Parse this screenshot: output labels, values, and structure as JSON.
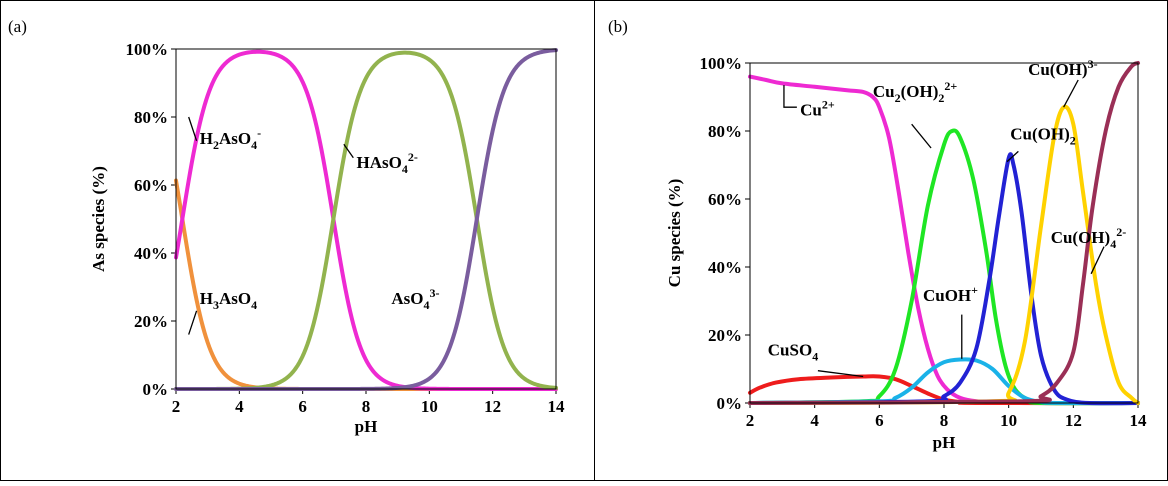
{
  "chart_data": [
    {
      "type": "line",
      "panel_label": "(a)",
      "xlabel": "pH",
      "ylabel": "As species  (%)",
      "xlim": [
        2,
        14
      ],
      "ylim": [
        0,
        100
      ],
      "x_ticks": [
        "2",
        "4",
        "6",
        "8",
        "10",
        "12",
        "14"
      ],
      "y_ticks": [
        "0%",
        "20%",
        "40%",
        "60%",
        "80%",
        "100%"
      ],
      "grid": false,
      "legend": "none (species labelled directly on curves)",
      "species_model": {
        "pKa": [
          2.2,
          6.97,
          11.5
        ]
      },
      "series": [
        {
          "name": "H3AsO4",
          "label": [
            {
              "t": "H"
            },
            {
              "t": "3",
              "s": "sub"
            },
            {
              "t": "AsO"
            },
            {
              "t": "4",
              "s": "sub"
            }
          ],
          "color": "#f0913c",
          "values_at_pH": {
            "2": 61,
            "3": 14,
            "4": 2,
            "4.6": 0.5,
            "6": 0,
            "14": 0
          }
        },
        {
          "name": "H2AsO4-",
          "label": [
            {
              "t": "H"
            },
            {
              "t": "2",
              "s": "sub"
            },
            {
              "t": "AsO"
            },
            {
              "t": "4",
              "s": "sub"
            },
            {
              "t": "-",
              "s": "sup"
            }
          ],
          "color": "#ee2ad2",
          "values_at_pH": {
            "2": 39,
            "3": 86,
            "4": 98,
            "4.6": 99,
            "6": 90,
            "7": 52,
            "8": 9,
            "10": 0,
            "14": 0
          }
        },
        {
          "name": "HAsO42-",
          "label": [
            {
              "t": "HAsO"
            },
            {
              "t": "4",
              "s": "sub"
            },
            {
              "t": "2-",
              "s": "sup"
            }
          ],
          "color": "#92b34e",
          "values_at_pH": {
            "2": 0,
            "6": 10,
            "7": 48,
            "8": 91,
            "9.2": 99,
            "10": 97,
            "11": 76,
            "11.5": 50,
            "12": 24,
            "13": 3,
            "14": 0
          }
        },
        {
          "name": "AsO43-",
          "label": [
            {
              "t": "AsO"
            },
            {
              "t": "4",
              "s": "sub"
            },
            {
              "t": "3-",
              "s": "sup"
            }
          ],
          "color": "#7a5d9e",
          "values_at_pH": {
            "2": 0,
            "9": 1,
            "10": 3,
            "11": 24,
            "11.5": 50,
            "12": 76,
            "13": 97,
            "14": 100
          }
        }
      ]
    },
    {
      "type": "line",
      "panel_label": "(b)",
      "xlabel": "pH",
      "ylabel": "Cu species  (%)",
      "xlim": [
        2,
        14
      ],
      "ylim": [
        0,
        100
      ],
      "x_ticks": [
        "2",
        "4",
        "6",
        "8",
        "10",
        "12",
        "14"
      ],
      "y_ticks": [
        "0%",
        "20%",
        "40%",
        "60%",
        "80%",
        "100%"
      ],
      "grid": false,
      "legend": "none (species labelled directly on curves)",
      "series": [
        {
          "name": "Cu2+",
          "label": [
            {
              "t": "Cu"
            },
            {
              "t": "2+",
              "s": "sup"
            }
          ],
          "color": "#ee2ad2",
          "points": [
            [
              2,
              96
            ],
            [
              2.5,
              95
            ],
            [
              3,
              94
            ],
            [
              4,
              93
            ],
            [
              5,
              92
            ],
            [
              5.5,
              91.5
            ],
            [
              5.8,
              90
            ],
            [
              6,
              87
            ],
            [
              6.3,
              78
            ],
            [
              6.6,
              62
            ],
            [
              6.9,
              44
            ],
            [
              7.2,
              28
            ],
            [
              7.5,
              16
            ],
            [
              7.8,
              8
            ],
            [
              8.1,
              4
            ],
            [
              8.5,
              1.5
            ],
            [
              9,
              0.5
            ],
            [
              10,
              0
            ],
            [
              14,
              0
            ]
          ]
        },
        {
          "name": "CuSO4",
          "label": [
            {
              "t": "CuSO"
            },
            {
              "t": "4",
              "s": "sub"
            }
          ],
          "color": "#ee1c1c",
          "points": [
            [
              2,
              3
            ],
            [
              2.3,
              4.5
            ],
            [
              2.8,
              6
            ],
            [
              3.5,
              7
            ],
            [
              4.5,
              7.5
            ],
            [
              5.5,
              7.8
            ],
            [
              6,
              7.8
            ],
            [
              6.5,
              7
            ],
            [
              7,
              5
            ],
            [
              7.5,
              2.8
            ],
            [
              8,
              1
            ],
            [
              8.5,
              0.3
            ],
            [
              9,
              0
            ],
            [
              14,
              0
            ]
          ]
        },
        {
          "name": "Cu2(OH)22+",
          "label": [
            {
              "t": "Cu"
            },
            {
              "t": "2",
              "s": "sub"
            },
            {
              "t": "(OH)"
            },
            {
              "t": "2",
              "s": "sub"
            },
            {
              "t": "2+",
              "s": "sup"
            }
          ],
          "color": "#1fe624",
          "points": [
            [
              2,
              0
            ],
            [
              5.5,
              0.5
            ],
            [
              6,
              2
            ],
            [
              6.5,
              10
            ],
            [
              7,
              30
            ],
            [
              7.5,
              58
            ],
            [
              8,
              76
            ],
            [
              8.25,
              80
            ],
            [
              8.5,
              78
            ],
            [
              8.9,
              66
            ],
            [
              9.3,
              45
            ],
            [
              9.6,
              25
            ],
            [
              9.9,
              11
            ],
            [
              10.2,
              4
            ],
            [
              10.6,
              1
            ],
            [
              11,
              0
            ],
            [
              14,
              0
            ]
          ]
        },
        {
          "name": "CuOH+",
          "label": [
            {
              "t": "CuOH"
            },
            {
              "t": "+",
              "s": "sup"
            }
          ],
          "color": "#1ab2e8",
          "points": [
            [
              2,
              0
            ],
            [
              6,
              0.5
            ],
            [
              6.5,
              1.5
            ],
            [
              7,
              4.5
            ],
            [
              7.5,
              9
            ],
            [
              8,
              12
            ],
            [
              8.5,
              12.8
            ],
            [
              9,
              12.5
            ],
            [
              9.5,
              10
            ],
            [
              10,
              5
            ],
            [
              10.5,
              1.5
            ],
            [
              11,
              0.3
            ],
            [
              11.5,
              0
            ],
            [
              14,
              0
            ]
          ]
        },
        {
          "name": "Cu(OH)2",
          "label": [
            {
              "t": "Cu(OH)"
            },
            {
              "t": "2",
              "s": "sub"
            }
          ],
          "color": "#2222d4",
          "points": [
            [
              2,
              0
            ],
            [
              7.5,
              0.5
            ],
            [
              8,
              2
            ],
            [
              8.5,
              6
            ],
            [
              9,
              16
            ],
            [
              9.4,
              36
            ],
            [
              9.7,
              55
            ],
            [
              10,
              72
            ],
            [
              10.15,
              70
            ],
            [
              10.4,
              56
            ],
            [
              10.7,
              32
            ],
            [
              11,
              14
            ],
            [
              11.4,
              4
            ],
            [
              11.8,
              1
            ],
            [
              12.5,
              0
            ],
            [
              14,
              0
            ]
          ]
        },
        {
          "name": "Cu(OH)3-",
          "label": [
            {
              "t": "Cu(OH)"
            },
            {
              "t": "3-",
              "s": "sup"
            }
          ],
          "color": "#ffd200",
          "points": [
            [
              2,
              0
            ],
            [
              9.5,
              0.5
            ],
            [
              10,
              3
            ],
            [
              10.5,
              18
            ],
            [
              11,
              52
            ],
            [
              11.4,
              78
            ],
            [
              11.7,
              87
            ],
            [
              12,
              82
            ],
            [
              12.3,
              62
            ],
            [
              12.7,
              35
            ],
            [
              13,
              20
            ],
            [
              13.4,
              6
            ],
            [
              13.8,
              1.5
            ],
            [
              14,
              0
            ]
          ]
        },
        {
          "name": "Cu(OH)42-",
          "label": [
            {
              "t": "Cu(OH)"
            },
            {
              "t": "4",
              "s": "sub"
            },
            {
              "t": "2-",
              "s": "sup"
            }
          ],
          "color": "#9a2f56",
          "points": [
            [
              2,
              0
            ],
            [
              10.5,
              0.5
            ],
            [
              11,
              2
            ],
            [
              11.5,
              6
            ],
            [
              12,
              15
            ],
            [
              12.3,
              35
            ],
            [
              12.6,
              58
            ],
            [
              13,
              80
            ],
            [
              13.4,
              93
            ],
            [
              13.8,
              99
            ],
            [
              14,
              100
            ]
          ]
        }
      ]
    }
  ],
  "chart_labels": [
    {
      "series": "H2AsO4-",
      "panel": 0,
      "anchor": [
        2.6,
        80
      ],
      "leader": [
        [
          2.4,
          80
        ],
        [
          2.65,
          73
        ]
      ],
      "text_pos": [
        2.75,
        72
      ],
      "align": "start"
    },
    {
      "series": "H3AsO4",
      "panel": 0,
      "anchor": [
        2.6,
        17
      ],
      "leader": [
        [
          2.4,
          16
        ],
        [
          2.65,
          23
        ]
      ],
      "text_pos": [
        2.75,
        25
      ],
      "align": "start"
    },
    {
      "series": "HAsO42-",
      "panel": 0,
      "anchor": [
        7.3,
        72
      ],
      "leader": [
        [
          7.3,
          72
        ],
        [
          7.6,
          68
        ]
      ],
      "text_pos": [
        7.7,
        65
      ],
      "align": "start"
    },
    {
      "series": "AsO43-",
      "panel": 0,
      "anchor": null,
      "leader": null,
      "text_pos": [
        8.8,
        25
      ],
      "align": "start"
    },
    {
      "series": "Cu2+",
      "panel": 1,
      "anchor": [
        3.0,
        93.5
      ],
      "leader": [
        [
          3.05,
          93.5
        ],
        [
          3.05,
          87
        ],
        [
          3.45,
          87
        ]
      ],
      "text_pos": [
        3.55,
        84.5
      ],
      "align": "start"
    },
    {
      "series": "Cu2(OH)22+",
      "panel": 1,
      "anchor": [
        7.6,
        75
      ],
      "leader": [
        [
          7.6,
          75
        ],
        [
          7.0,
          82
        ]
      ],
      "text_pos": [
        5.8,
        90
      ],
      "align": "start"
    },
    {
      "series": "Cu(OH)2",
      "panel": 1,
      "anchor": [
        9.95,
        71
      ],
      "leader": [
        [
          9.95,
          71
        ],
        [
          10.3,
          74
        ]
      ],
      "text_pos": [
        10.05,
        77.5
      ],
      "align": "start"
    },
    {
      "series": "Cu(OH)3-",
      "panel": 1,
      "anchor": [
        11.7,
        87
      ],
      "leader": [
        [
          11.7,
          87
        ],
        [
          12.15,
          95
        ]
      ],
      "text_pos": [
        10.6,
        96.5
      ],
      "align": "start"
    },
    {
      "series": "Cu(OH)42-",
      "panel": 1,
      "anchor": [
        12.55,
        38
      ],
      "leader": [
        [
          12.55,
          38
        ],
        [
          12.95,
          46
        ]
      ],
      "text_pos": [
        11.3,
        47
      ],
      "align": "start"
    },
    {
      "series": "CuOH+",
      "panel": 1,
      "anchor": [
        8.55,
        13
      ],
      "leader": [
        [
          8.55,
          13
        ],
        [
          8.55,
          26
        ]
      ],
      "text_pos": [
        7.35,
        30
      ],
      "align": "start"
    },
    {
      "series": "CuSO4",
      "panel": 1,
      "anchor": [
        5.5,
        7.8
      ],
      "leader": [
        [
          5.5,
          7.8
        ],
        [
          4.1,
          9.5
        ]
      ],
      "text_pos": [
        2.55,
        14
      ],
      "align": "start"
    }
  ]
}
